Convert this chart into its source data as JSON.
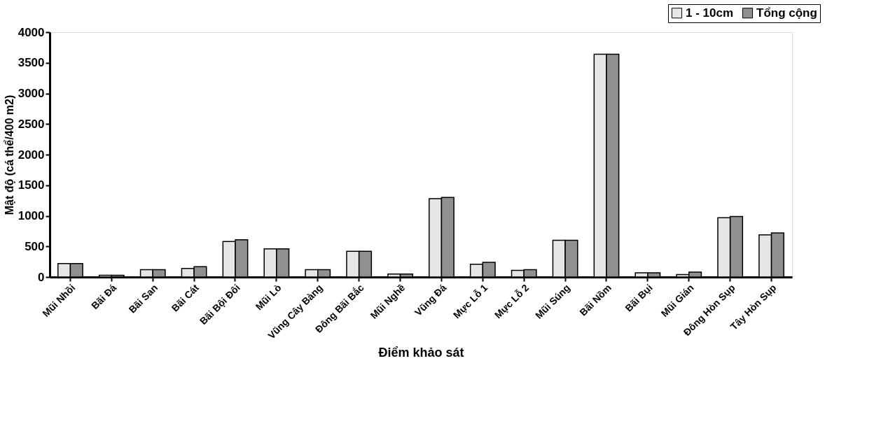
{
  "chart_data": {
    "type": "bar",
    "xlabel": "Điểm khảo sát",
    "ylabel": "Mật độ (cá thể/400 m2)",
    "categories": [
      "Mũi Nhồi",
      "Bãi Đá",
      "Bãi San",
      "Bãi Cát",
      "Bãi Bội Đôi",
      "Mũi Lò",
      "Vũng Cây Bàng",
      "Đông Bãi Bắc",
      "Mũi Nghề",
      "Vũng Đá",
      "Mực Lỗ 1",
      "Mực Lỗ 2",
      "Mũi Súng",
      "Bãi Nồm",
      "Bãi Bụi",
      "Mũi Gián",
      "Đông Hòn Sụp",
      "Tây Hòn Sụp"
    ],
    "series": [
      {
        "name": "1 - 10cm",
        "color": "#e6e6e6",
        "values": [
          220,
          30,
          120,
          140,
          580,
          460,
          120,
          420,
          50,
          1280,
          210,
          110,
          600,
          3640,
          70,
          40,
          970,
          690
        ]
      },
      {
        "name": "Tổng cộng",
        "color": "#909090",
        "values": [
          220,
          30,
          120,
          170,
          610,
          460,
          120,
          420,
          50,
          1300,
          240,
          120,
          600,
          3640,
          70,
          80,
          990,
          720
        ]
      }
    ],
    "ylim": [
      0,
      4000
    ],
    "yticks": [
      0,
      500,
      1000,
      1500,
      2000,
      2500,
      3000,
      3500,
      4000
    ],
    "grid": false,
    "legend": "top right"
  }
}
